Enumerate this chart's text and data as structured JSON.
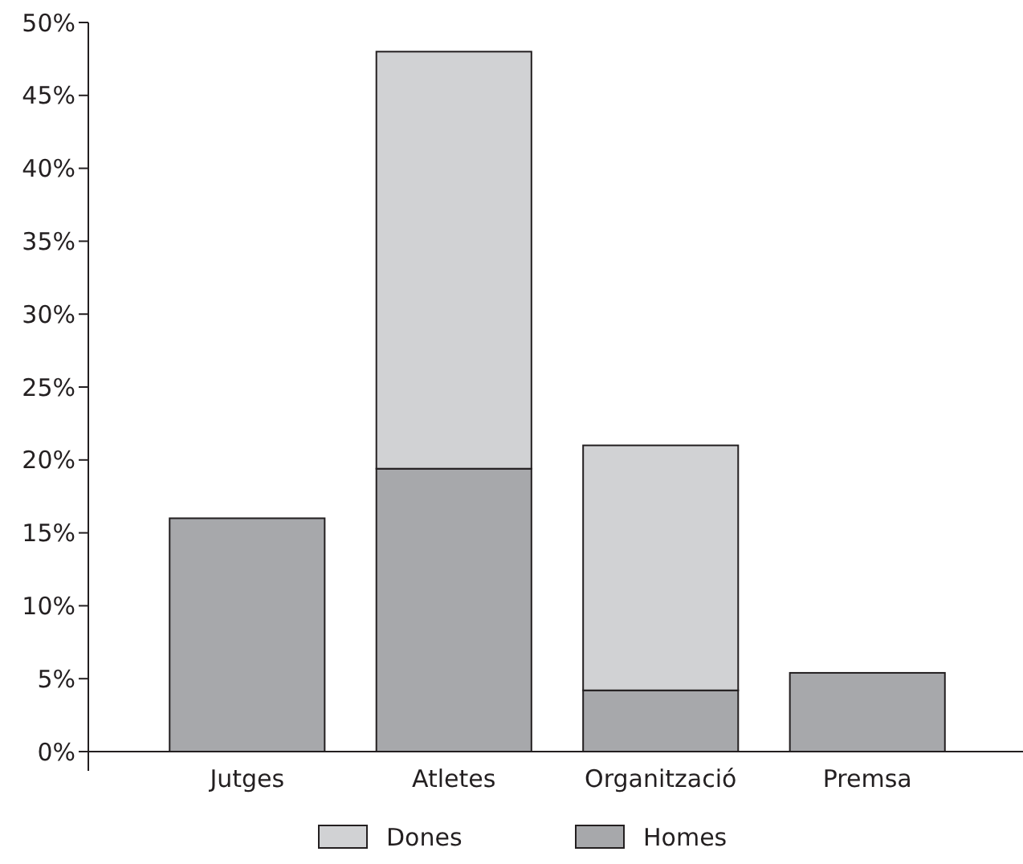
{
  "chart_data": {
    "type": "bar",
    "stacked": true,
    "categories": [
      "Jutges",
      "Atletes",
      "Organització",
      "Premsa"
    ],
    "series": [
      {
        "name": "Homes",
        "color": "#a7a8ab",
        "values": [
          16,
          19.4,
          4.2,
          5.4
        ]
      },
      {
        "name": "Dones",
        "color": "#d1d2d4",
        "values": [
          0,
          28.6,
          16.8,
          0
        ]
      }
    ],
    "ylim": [
      0,
      50
    ],
    "yticks": [
      {
        "value": 0,
        "label": "0%"
      },
      {
        "value": 5,
        "label": "5%"
      },
      {
        "value": 10,
        "label": "10%"
      },
      {
        "value": 15,
        "label": "15%"
      },
      {
        "value": 20,
        "label": "20%"
      },
      {
        "value": 25,
        "label": "25%"
      },
      {
        "value": 30,
        "label": "30%"
      },
      {
        "value": 35,
        "label": "35%"
      },
      {
        "value": 40,
        "label": "40%"
      },
      {
        "value": 45,
        "label": "45%"
      },
      {
        "value": 50,
        "label": "50%"
      }
    ],
    "legend": "bottom",
    "grid": false
  }
}
